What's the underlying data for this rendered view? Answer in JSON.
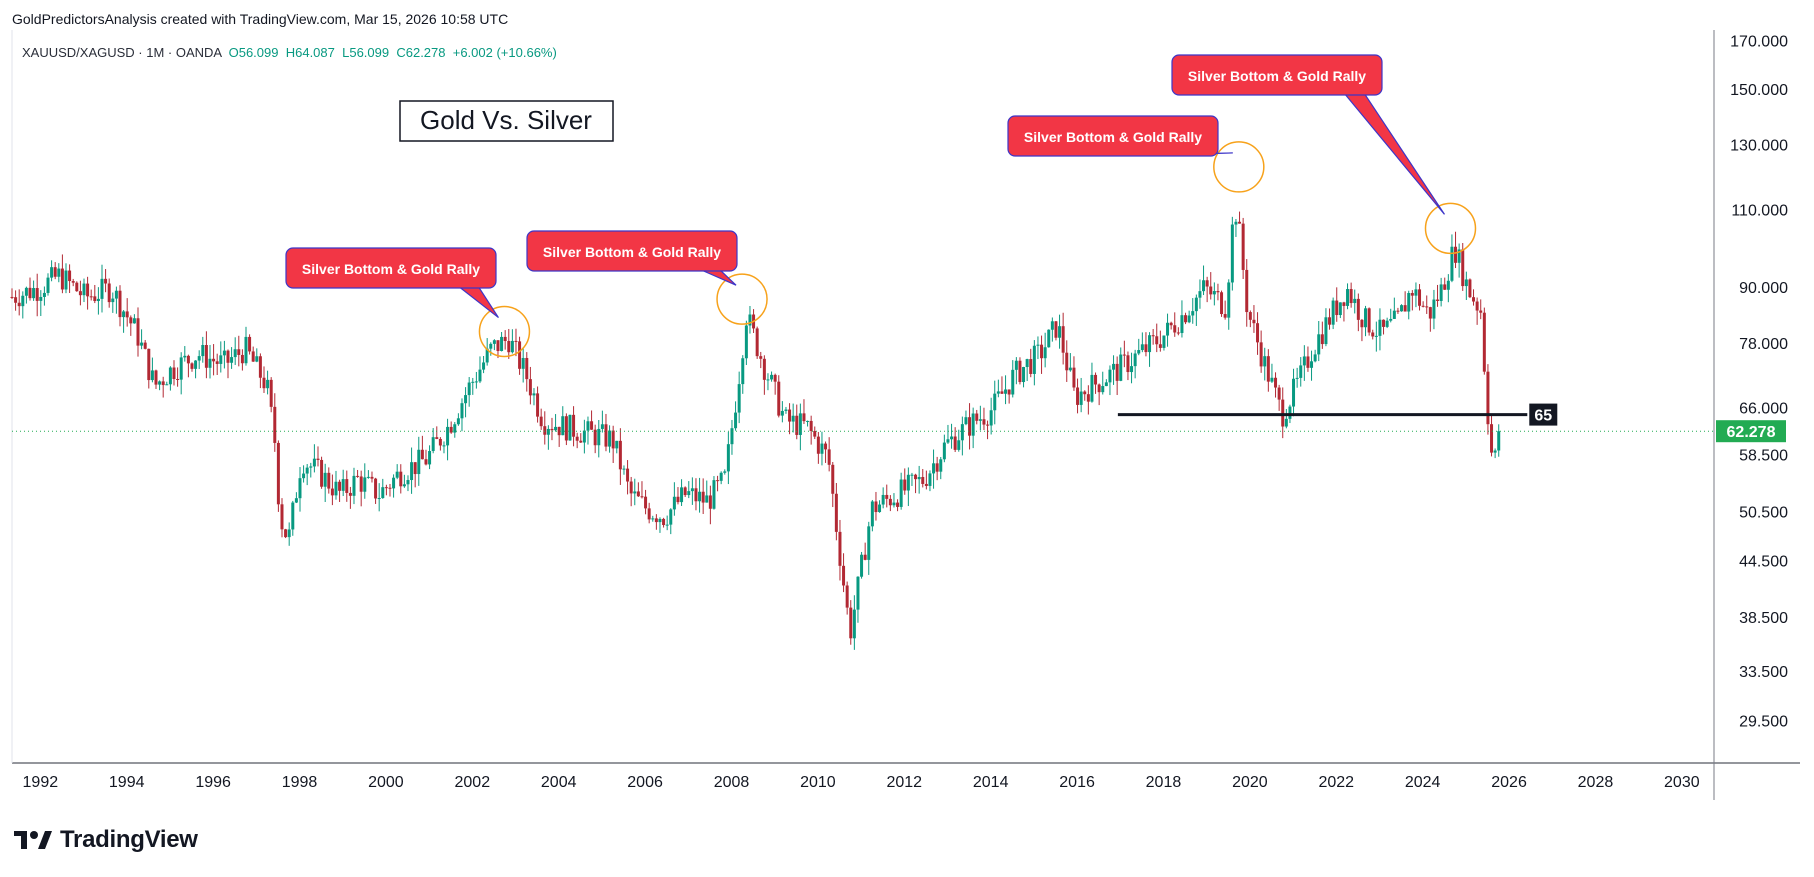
{
  "header": {
    "caption": "GoldPredictorsAnalysis created with TradingView.com, Mar 15, 2026 10:58 UTC"
  },
  "symbol_bar": {
    "symbol": "XAUUSD/XAGUSD · 1M · OANDA",
    "open": "O56.099",
    "high": "H64.087",
    "low": "L56.099",
    "close": "C62.278",
    "change": "+6.002 (+10.66%)"
  },
  "branding": {
    "logo_text": "TradingView"
  },
  "colors": {
    "up": "#089981",
    "down": "#b22833",
    "callout": "#f23645",
    "callout_border": "#3d35c8",
    "circle": "#f7a21b",
    "last_price": "#22ab53",
    "level_line": "#131722"
  },
  "chart_data": {
    "type": "candlestick",
    "title": "Gold Vs. Silver",
    "symbol": "XAUUSD/XAGUSD",
    "interval": "1M",
    "scale": "log",
    "x_ticks": [
      "1992",
      "1994",
      "1996",
      "1998",
      "2000",
      "2002",
      "2004",
      "2006",
      "2008",
      "2010",
      "2012",
      "2014",
      "2016",
      "2018",
      "2020",
      "2022",
      "2024",
      "2026",
      "2028",
      "2030"
    ],
    "y_ticks": [
      "170.000",
      "150.000",
      "130.000",
      "110.000",
      "90.000",
      "78.000",
      "66.000",
      "58.500",
      "50.500",
      "44.500",
      "38.500",
      "33.500",
      "29.500"
    ],
    "ylim": [
      26.5,
      175
    ],
    "xlim": [
      1991.9,
      2031.3
    ],
    "last_price": "62.278",
    "level": {
      "label": "65",
      "value": 65,
      "x_start": 2017.5,
      "x_end": 2026.7
    },
    "annotations": [
      {
        "text": "Silver Bottom & Gold Rally",
        "x": 2003.3,
        "y": 80.5
      },
      {
        "text": "Silver Bottom & Gold Rally",
        "x": 2008.8,
        "y": 87.5
      },
      {
        "text": "Silver Bottom & Gold Rally",
        "x": 2020.3,
        "y": 123
      },
      {
        "text": "Silver Bottom & Gold Rally",
        "x": 2025.2,
        "y": 105
      }
    ],
    "series": [
      {
        "name": "close",
        "points": [
          [
            1991.9,
            88
          ],
          [
            1992.5,
            90
          ],
          [
            1993.0,
            93
          ],
          [
            1993.6,
            88
          ],
          [
            1994.2,
            90
          ],
          [
            1994.8,
            80
          ],
          [
            1995.2,
            70
          ],
          [
            1995.6,
            73
          ],
          [
            1996.2,
            76
          ],
          [
            1996.8,
            74
          ],
          [
            1997.3,
            77
          ],
          [
            1997.8,
            70
          ],
          [
            1998.0,
            60
          ],
          [
            1998.1,
            50
          ],
          [
            1998.3,
            47
          ],
          [
            1998.6,
            58
          ],
          [
            1999.0,
            56
          ],
          [
            1999.5,
            53
          ],
          [
            1999.9,
            55
          ],
          [
            2000.4,
            53
          ],
          [
            2000.9,
            56
          ],
          [
            2001.5,
            58
          ],
          [
            2002.0,
            63
          ],
          [
            2002.5,
            70
          ],
          [
            2003.0,
            77
          ],
          [
            2003.4,
            79
          ],
          [
            2003.8,
            72
          ],
          [
            2004.2,
            64
          ],
          [
            2004.7,
            63
          ],
          [
            2005.2,
            62
          ],
          [
            2005.8,
            61
          ],
          [
            2006.2,
            53
          ],
          [
            2006.6,
            51
          ],
          [
            2007.0,
            50
          ],
          [
            2007.5,
            53
          ],
          [
            2008.0,
            52
          ],
          [
            2008.4,
            55
          ],
          [
            2008.7,
            70
          ],
          [
            2008.9,
            84
          ],
          [
            2009.3,
            74
          ],
          [
            2009.8,
            64
          ],
          [
            2010.3,
            63
          ],
          [
            2010.8,
            58
          ],
          [
            2011.0,
            48
          ],
          [
            2011.3,
            37
          ],
          [
            2011.5,
            42
          ],
          [
            2011.8,
            51
          ],
          [
            2012.4,
            53
          ],
          [
            2013.0,
            55
          ],
          [
            2013.5,
            60
          ],
          [
            2014.0,
            63
          ],
          [
            2014.6,
            66
          ],
          [
            2015.1,
            72
          ],
          [
            2015.7,
            76
          ],
          [
            2016.1,
            82
          ],
          [
            2016.5,
            68
          ],
          [
            2016.9,
            70
          ],
          [
            2017.5,
            73
          ],
          [
            2018.0,
            76
          ],
          [
            2018.6,
            80
          ],
          [
            2019.0,
            84
          ],
          [
            2019.5,
            90
          ],
          [
            2020.0,
            86
          ],
          [
            2020.2,
            112
          ],
          [
            2020.3,
            105
          ],
          [
            2020.5,
            85
          ],
          [
            2020.9,
            74
          ],
          [
            2021.3,
            65
          ],
          [
            2021.7,
            71
          ],
          [
            2022.0,
            77
          ],
          [
            2022.5,
            85
          ],
          [
            2022.8,
            90
          ],
          [
            2023.2,
            83
          ],
          [
            2023.6,
            80
          ],
          [
            2024.0,
            83
          ],
          [
            2024.3,
            90
          ],
          [
            2024.7,
            84
          ],
          [
            2025.0,
            90
          ],
          [
            2025.3,
            100
          ],
          [
            2025.6,
            90
          ],
          [
            2025.9,
            85
          ],
          [
            2026.0,
            72
          ],
          [
            2026.1,
            62
          ],
          [
            2026.2,
            56
          ],
          [
            2026.3,
            62.278
          ]
        ]
      }
    ]
  }
}
